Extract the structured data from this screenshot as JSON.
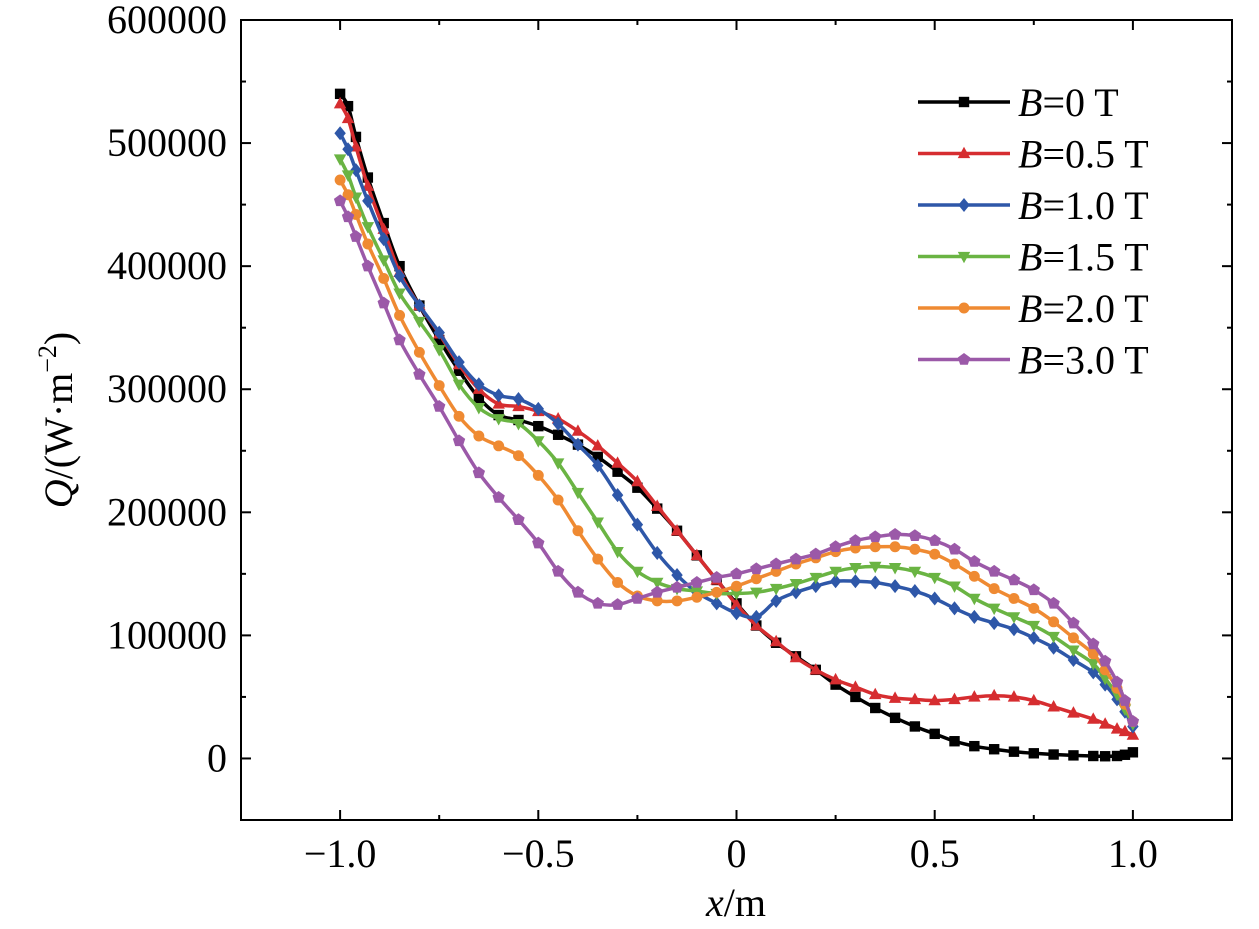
{
  "chart_data": {
    "type": "line",
    "title": "",
    "xlabel": {
      "italic": "x",
      "rest": "/m"
    },
    "ylabel": {
      "italic": "Q",
      "rest": "/(W·m",
      "sup": "−2",
      "close": ")"
    },
    "xlim": [
      -1.25,
      1.25
    ],
    "ylim": [
      -50000,
      600000
    ],
    "xticks": [
      -1.0,
      -0.5,
      0,
      0.5,
      1.0
    ],
    "xtick_labels": [
      "−1.0",
      "−0.5",
      "0",
      "0.5",
      "1.0"
    ],
    "yticks": [
      0,
      100000,
      200000,
      300000,
      400000,
      500000,
      600000
    ],
    "ytick_labels": [
      "0",
      "100000",
      "200000",
      "300000",
      "400000",
      "500000",
      "600000"
    ],
    "legend_position": "top-right",
    "grid": false,
    "series": [
      {
        "name": "B=0 T",
        "legend_italic": "B",
        "legend_rest": "=0 T",
        "color": "#000000",
        "marker": "square",
        "x": [
          -1.0,
          -0.98,
          -0.96,
          -0.93,
          -0.89,
          -0.85,
          -0.8,
          -0.75,
          -0.7,
          -0.65,
          -0.6,
          -0.55,
          -0.5,
          -0.45,
          -0.4,
          -0.35,
          -0.3,
          -0.25,
          -0.2,
          -0.15,
          -0.1,
          -0.05,
          0.0,
          0.05,
          0.1,
          0.15,
          0.2,
          0.25,
          0.3,
          0.35,
          0.4,
          0.45,
          0.5,
          0.55,
          0.6,
          0.65,
          0.7,
          0.75,
          0.8,
          0.85,
          0.9,
          0.93,
          0.96,
          0.98,
          1.0
        ],
        "y": [
          540000,
          530000,
          505000,
          472000,
          435000,
          400000,
          368000,
          340000,
          315000,
          293000,
          279000,
          275000,
          270000,
          263000,
          255000,
          245000,
          233000,
          220000,
          203000,
          185000,
          165000,
          145000,
          126000,
          108000,
          94000,
          83000,
          72000,
          60000,
          50000,
          41000,
          33000,
          26000,
          20000,
          14000,
          10000,
          7500,
          5500,
          4200,
          3200,
          2500,
          2000,
          1800,
          2000,
          3000,
          5000
        ]
      },
      {
        "name": "B=0.5 T",
        "legend_italic": "B",
        "legend_rest": "=0.5 T",
        "color": "#d62d30",
        "marker": "triangle-up",
        "x": [
          -1.0,
          -0.98,
          -0.96,
          -0.93,
          -0.89,
          -0.85,
          -0.8,
          -0.75,
          -0.7,
          -0.65,
          -0.6,
          -0.55,
          -0.5,
          -0.45,
          -0.4,
          -0.35,
          -0.3,
          -0.25,
          -0.2,
          -0.15,
          -0.1,
          -0.05,
          0.0,
          0.05,
          0.1,
          0.15,
          0.2,
          0.25,
          0.3,
          0.35,
          0.4,
          0.45,
          0.5,
          0.55,
          0.6,
          0.65,
          0.7,
          0.75,
          0.8,
          0.85,
          0.9,
          0.93,
          0.96,
          0.98,
          1.0
        ],
        "y": [
          532000,
          520000,
          497000,
          465000,
          430000,
          395000,
          368000,
          345000,
          320000,
          300000,
          288000,
          286000,
          282000,
          276000,
          266000,
          254000,
          240000,
          225000,
          205000,
          185000,
          165000,
          145000,
          125000,
          108000,
          95000,
          82000,
          72000,
          64000,
          58000,
          52000,
          49000,
          48000,
          47000,
          48000,
          50000,
          51000,
          50000,
          47000,
          42000,
          37000,
          32000,
          28000,
          24000,
          22000,
          19000
        ]
      },
      {
        "name": "B=1.0 T",
        "legend_italic": "B",
        "legend_rest": "=1.0 T",
        "color": "#2e57a8",
        "marker": "diamond",
        "x": [
          -1.0,
          -0.98,
          -0.96,
          -0.93,
          -0.89,
          -0.85,
          -0.8,
          -0.75,
          -0.7,
          -0.65,
          -0.6,
          -0.55,
          -0.5,
          -0.45,
          -0.4,
          -0.35,
          -0.3,
          -0.25,
          -0.2,
          -0.15,
          -0.1,
          -0.05,
          0.0,
          0.05,
          0.1,
          0.15,
          0.2,
          0.25,
          0.3,
          0.35,
          0.4,
          0.45,
          0.5,
          0.55,
          0.6,
          0.65,
          0.7,
          0.75,
          0.8,
          0.85,
          0.9,
          0.93,
          0.96,
          0.98,
          1.0
        ],
        "y": [
          508000,
          495000,
          478000,
          453000,
          422000,
          392000,
          368000,
          346000,
          322000,
          304000,
          295000,
          292000,
          284000,
          272000,
          255000,
          238000,
          214000,
          190000,
          167000,
          149000,
          135000,
          126000,
          118000,
          115000,
          128000,
          135000,
          140000,
          144000,
          144000,
          143000,
          140000,
          136000,
          130000,
          122000,
          115000,
          110000,
          105000,
          98000,
          90000,
          80000,
          70000,
          60000,
          48000,
          38000,
          26000
        ]
      },
      {
        "name": "B=1.5 T",
        "legend_italic": "B",
        "legend_rest": "=1.5 T",
        "color": "#6ab443",
        "marker": "triangle-down",
        "x": [
          -1.0,
          -0.98,
          -0.96,
          -0.93,
          -0.89,
          -0.85,
          -0.8,
          -0.75,
          -0.7,
          -0.65,
          -0.6,
          -0.55,
          -0.5,
          -0.45,
          -0.4,
          -0.35,
          -0.3,
          -0.25,
          -0.2,
          -0.15,
          -0.1,
          -0.05,
          0.0,
          0.05,
          0.1,
          0.15,
          0.2,
          0.25,
          0.3,
          0.35,
          0.4,
          0.45,
          0.5,
          0.55,
          0.6,
          0.65,
          0.7,
          0.75,
          0.8,
          0.85,
          0.9,
          0.93,
          0.96,
          0.98,
          1.0
        ],
        "y": [
          487000,
          474000,
          456000,
          432000,
          405000,
          378000,
          355000,
          332000,
          304000,
          285000,
          276000,
          272000,
          258000,
          240000,
          216000,
          192000,
          168000,
          152000,
          143000,
          138000,
          136000,
          134000,
          134000,
          135000,
          138000,
          142000,
          147000,
          152000,
          155000,
          156000,
          155000,
          152000,
          147000,
          140000,
          130000,
          122000,
          115000,
          108000,
          99000,
          88000,
          77000,
          65000,
          52000,
          40000,
          28000
        ]
      },
      {
        "name": "B=2.0 T",
        "legend_italic": "B",
        "legend_rest": "=2.0 T",
        "color": "#ef8a32",
        "marker": "circle",
        "x": [
          -1.0,
          -0.98,
          -0.96,
          -0.93,
          -0.89,
          -0.85,
          -0.8,
          -0.75,
          -0.7,
          -0.65,
          -0.6,
          -0.55,
          -0.5,
          -0.45,
          -0.4,
          -0.35,
          -0.3,
          -0.25,
          -0.2,
          -0.15,
          -0.1,
          -0.05,
          0.0,
          0.05,
          0.1,
          0.15,
          0.2,
          0.25,
          0.3,
          0.35,
          0.4,
          0.45,
          0.5,
          0.55,
          0.6,
          0.65,
          0.7,
          0.75,
          0.8,
          0.85,
          0.9,
          0.93,
          0.96,
          0.98,
          1.0
        ],
        "y": [
          470000,
          458000,
          442000,
          418000,
          390000,
          360000,
          330000,
          303000,
          278000,
          262000,
          254000,
          246000,
          230000,
          210000,
          185000,
          162000,
          143000,
          132000,
          128000,
          128000,
          131000,
          135000,
          140000,
          146000,
          152000,
          158000,
          163000,
          168000,
          171000,
          172000,
          172000,
          170000,
          166000,
          158000,
          148000,
          138000,
          130000,
          122000,
          111000,
          98000,
          85000,
          72000,
          57000,
          44000,
          30000
        ]
      },
      {
        "name": "B=3.0 T",
        "legend_italic": "B",
        "legend_rest": "=3.0 T",
        "color": "#9b59a8",
        "marker": "pentagon",
        "x": [
          -1.0,
          -0.98,
          -0.96,
          -0.93,
          -0.89,
          -0.85,
          -0.8,
          -0.75,
          -0.7,
          -0.65,
          -0.6,
          -0.55,
          -0.5,
          -0.45,
          -0.4,
          -0.35,
          -0.3,
          -0.25,
          -0.2,
          -0.15,
          -0.1,
          -0.05,
          0.0,
          0.05,
          0.1,
          0.15,
          0.2,
          0.25,
          0.3,
          0.35,
          0.4,
          0.45,
          0.5,
          0.55,
          0.6,
          0.65,
          0.7,
          0.75,
          0.8,
          0.85,
          0.9,
          0.93,
          0.96,
          0.98,
          1.0
        ],
        "y": [
          453000,
          440000,
          424000,
          400000,
          370000,
          340000,
          312000,
          286000,
          258000,
          232000,
          212000,
          194000,
          175000,
          152000,
          135000,
          126000,
          125000,
          130000,
          135000,
          139000,
          143000,
          147000,
          150000,
          154000,
          158000,
          162000,
          166000,
          172000,
          177000,
          180000,
          182000,
          181000,
          177000,
          170000,
          160000,
          152000,
          145000,
          137000,
          126000,
          110000,
          93000,
          79000,
          62000,
          47000,
          30000
        ]
      }
    ]
  }
}
